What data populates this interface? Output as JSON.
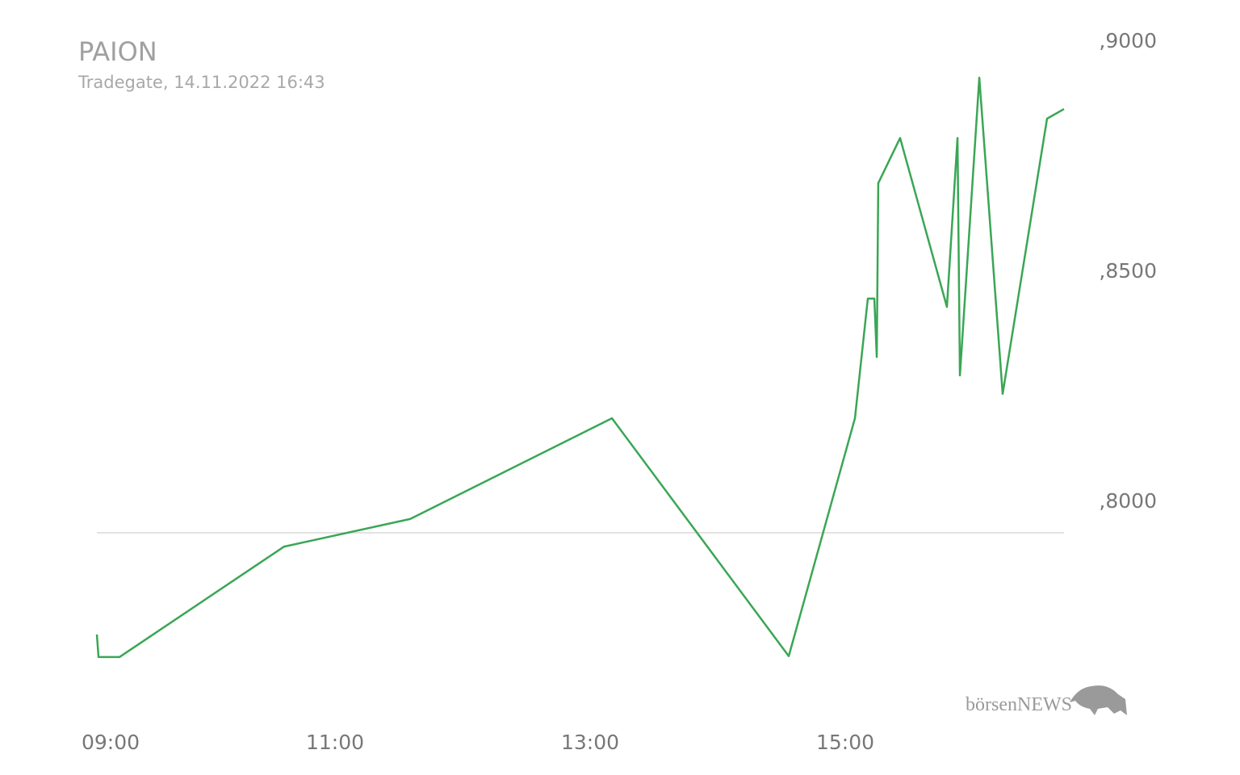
{
  "chart_data": {
    "type": "line",
    "title": "PAION",
    "subtitle": "Tradegate, 14.11.2022 16:43",
    "logo": "börsenNEWS",
    "x": [
      9.133,
      9.146,
      9.31,
      10.601,
      11.589,
      13.171,
      14.557,
      15.076,
      15.177,
      15.228,
      15.247,
      15.259,
      15.43,
      15.797,
      15.88,
      15.899,
      16.051,
      16.234,
      16.582,
      16.715
    ],
    "series": [
      {
        "name": "PAION",
        "color": "#3aa655",
        "values": [
          0.7779,
          0.773,
          0.773,
          0.797,
          0.803,
          0.8249,
          0.7732,
          0.8249,
          0.8509,
          0.8509,
          0.8382,
          0.876,
          0.8858,
          0.8491,
          0.8858,
          0.8342,
          0.8989,
          0.8302,
          0.89,
          0.8921
        ]
      }
    ],
    "xlim": [
      9.133,
      16.715
    ],
    "xticks": [
      {
        "value": 9,
        "label": "09:00"
      },
      {
        "value": 11,
        "label": "11:00"
      },
      {
        "value": 13,
        "label": "13:00"
      },
      {
        "value": 15,
        "label": "15:00"
      }
    ],
    "ylim": [
      0.765,
      0.905
    ],
    "yticks": [
      {
        "value": 0.8,
        "label": ",8000"
      },
      {
        "value": 0.85,
        "label": ",8500"
      },
      {
        "value": 0.9,
        "label": ",9000"
      }
    ],
    "baseline": 0.8,
    "legend": false
  }
}
